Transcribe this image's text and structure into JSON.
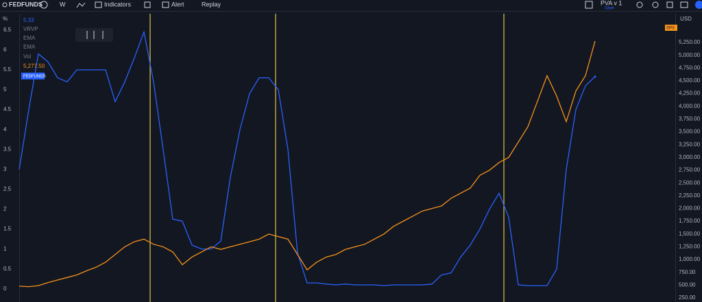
{
  "toolbar": {
    "symbol": "FEDFUNDS",
    "interval": "W",
    "indicators": "Indicators",
    "alert": "Alert",
    "replay": "Replay",
    "layout": "PVA v 1",
    "save": "Save"
  },
  "legend": {
    "value": "5.33",
    "items": [
      "VRVP",
      "EMA",
      "EMA",
      "Vol"
    ],
    "spx_value": "5,277.50"
  },
  "chart_data": {
    "type": "line",
    "ylabel": "%",
    "y2label": "USD",
    "ylim": [
      -0.33,
      6.91
    ],
    "yticks": [
      0,
      0.5,
      1,
      1.5,
      2,
      2.5,
      3,
      3.5,
      4,
      4.5,
      5,
      5.5,
      6,
      6.5
    ],
    "y2lim": [
      170,
      5813
    ],
    "y2ticks": [
      {
        "value": 250,
        "label": "250.00"
      },
      {
        "value": 500,
        "label": "500.00"
      },
      {
        "value": 750,
        "label": "750.00"
      },
      {
        "value": 1000,
        "label": "1,000.00"
      },
      {
        "value": 1250,
        "label": "1,250.00"
      },
      {
        "value": 1500,
        "label": "1,500.00"
      },
      {
        "value": 1750,
        "label": "1,750.00"
      },
      {
        "value": 2000,
        "label": "2,000.00"
      },
      {
        "value": 2250,
        "label": "2,250.00"
      },
      {
        "value": 2500,
        "label": "2,500.00"
      },
      {
        "value": 2750,
        "label": "2,750.00"
      },
      {
        "value": 3000,
        "label": "3,000.00"
      },
      {
        "value": 3250,
        "label": "3,250.00"
      },
      {
        "value": 3500,
        "label": "3,500.00"
      },
      {
        "value": 3750,
        "label": "3,750.00"
      },
      {
        "value": 4000,
        "label": "4,000.00"
      },
      {
        "value": 4250,
        "label": "4,250.00"
      },
      {
        "value": 4500,
        "label": "4,500.00"
      },
      {
        "value": 4750,
        "label": "4,750.00"
      },
      {
        "value": 5000,
        "label": "5,000.00"
      },
      {
        "value": 5250,
        "label": "5,250.00"
      }
    ],
    "series": [
      {
        "name": "FEDFUNDS",
        "color": "#2962ff",
        "values": [
          3.0,
          4.5,
          5.9,
          5.7,
          5.3,
          5.2,
          5.5,
          5.5,
          5.5,
          5.5,
          4.7,
          5.2,
          5.8,
          6.45,
          5.2,
          3.5,
          1.75,
          1.7,
          1.1,
          1.0,
          1.0,
          1.2,
          2.8,
          4.0,
          4.9,
          5.3,
          5.3,
          5.0,
          3.5,
          0.9,
          0.15,
          0.15,
          0.12,
          0.1,
          0.12,
          0.1,
          0.1,
          0.1,
          0.08,
          0.1,
          0.1,
          0.1,
          0.1,
          0.12,
          0.35,
          0.4,
          0.8,
          1.1,
          1.5,
          2.0,
          2.4,
          1.8,
          0.1,
          0.08,
          0.08,
          0.08,
          0.5,
          3.0,
          4.5,
          5.1,
          5.33
        ]
      },
      {
        "name": "SPX",
        "color": "#f7931a",
        "axis": "y2",
        "values": [
          480,
          470,
          490,
          550,
          600,
          650,
          700,
          780,
          850,
          950,
          1100,
          1250,
          1350,
          1400,
          1300,
          1250,
          1150,
          900,
          1050,
          1150,
          1250,
          1200,
          1250,
          1300,
          1350,
          1400,
          1500,
          1450,
          1400,
          1100,
          800,
          950,
          1050,
          1100,
          1200,
          1250,
          1300,
          1400,
          1500,
          1650,
          1750,
          1850,
          1950,
          2000,
          2050,
          2200,
          2300,
          2400,
          2650,
          2750,
          2900,
          3000,
          3300,
          3600,
          4100,
          4600,
          4200,
          3700,
          4300,
          4600,
          5277.5
        ]
      }
    ]
  }
}
